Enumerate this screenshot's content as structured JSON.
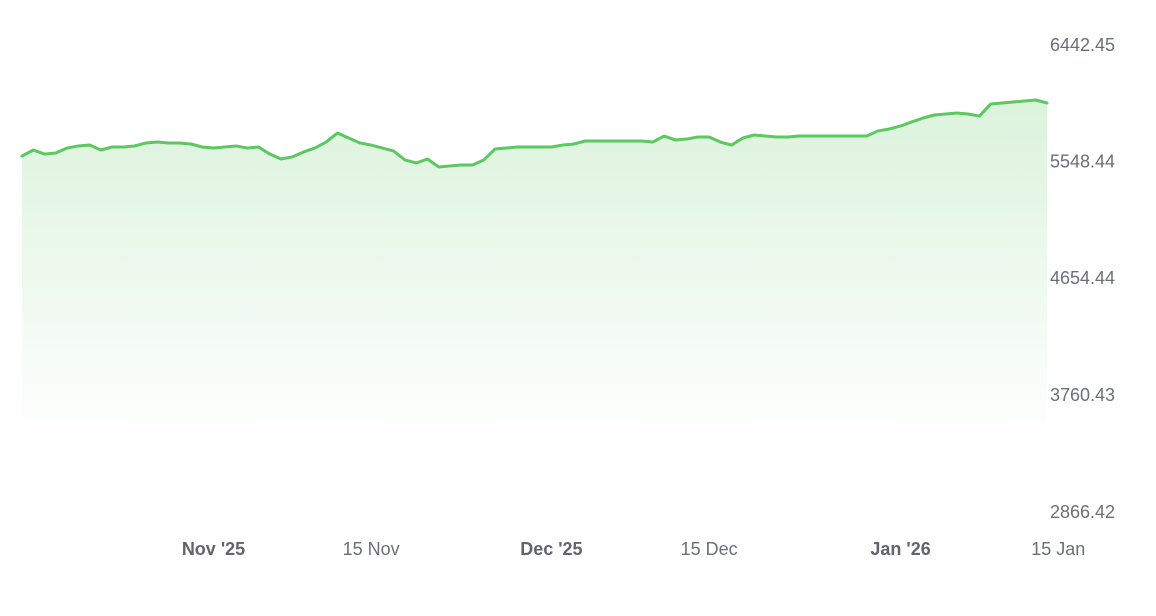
{
  "chart_data": {
    "type": "area",
    "x": [
      "2025-10-15",
      "2025-10-16",
      "2025-10-17",
      "2025-10-18",
      "2025-10-19",
      "2025-10-20",
      "2025-10-21",
      "2025-10-22",
      "2025-10-23",
      "2025-10-24",
      "2025-10-25",
      "2025-10-26",
      "2025-10-27",
      "2025-10-28",
      "2025-10-29",
      "2025-10-30",
      "2025-10-31",
      "2025-11-01",
      "2025-11-02",
      "2025-11-03",
      "2025-11-04",
      "2025-11-05",
      "2025-11-06",
      "2025-11-07",
      "2025-11-08",
      "2025-11-09",
      "2025-11-10",
      "2025-11-11",
      "2025-11-12",
      "2025-11-13",
      "2025-11-14",
      "2025-11-15",
      "2025-11-16",
      "2025-11-17",
      "2025-11-18",
      "2025-11-19",
      "2025-11-20",
      "2025-11-21",
      "2025-11-22",
      "2025-11-23",
      "2025-11-24",
      "2025-11-25",
      "2025-11-26",
      "2025-11-27",
      "2025-11-28",
      "2025-11-29",
      "2025-11-30",
      "2025-12-01",
      "2025-12-02",
      "2025-12-03",
      "2025-12-04",
      "2025-12-05",
      "2025-12-06",
      "2025-12-07",
      "2025-12-08",
      "2025-12-09",
      "2025-12-10",
      "2025-12-11",
      "2025-12-12",
      "2025-12-13",
      "2025-12-14",
      "2025-12-15",
      "2025-12-16",
      "2025-12-17",
      "2025-12-18",
      "2025-12-19",
      "2025-12-20",
      "2025-12-21",
      "2025-12-22",
      "2025-12-23",
      "2025-12-24",
      "2025-12-25",
      "2025-12-26",
      "2025-12-27",
      "2025-12-28",
      "2025-12-29",
      "2025-12-30",
      "2025-12-31",
      "2026-01-01",
      "2026-01-02",
      "2026-01-03",
      "2026-01-04",
      "2026-01-05",
      "2026-01-06",
      "2026-01-07",
      "2026-01-08",
      "2026-01-09",
      "2026-01-10",
      "2026-01-11",
      "2026-01-12",
      "2026-01-13",
      "2026-01-14"
    ],
    "series": [
      {
        "color": "#5cc860",
        "values": [
          5600,
          5646,
          5615,
          5623,
          5661,
          5677,
          5684,
          5646,
          5669,
          5669,
          5677,
          5700,
          5707,
          5700,
          5700,
          5692,
          5669,
          5661,
          5669,
          5677,
          5661,
          5669,
          5615,
          5577,
          5593,
          5631,
          5661,
          5707,
          5776,
          5738,
          5700,
          5684,
          5661,
          5638,
          5570,
          5547,
          5577,
          5516,
          5524,
          5531,
          5531,
          5570,
          5654,
          5661,
          5669,
          5669,
          5669,
          5669,
          5684,
          5692,
          5715,
          5715,
          5715,
          5715,
          5715,
          5715,
          5707,
          5753,
          5723,
          5730,
          5746,
          5746,
          5707,
          5684,
          5738,
          5761,
          5753,
          5746,
          5746,
          5753,
          5753,
          5753,
          5753,
          5753,
          5753,
          5753,
          5792,
          5807,
          5830,
          5861,
          5891,
          5914,
          5922,
          5929,
          5922,
          5906,
          5998,
          6006,
          6014,
          6021,
          6029,
          6006
        ]
      }
    ],
    "xlim": [
      "2025-10-15",
      "2026-01-14"
    ],
    "xticks": [
      {
        "value": "2025-11-01",
        "label": "Nov '25"
      },
      {
        "value": "2025-11-15",
        "label": "15 Nov"
      },
      {
        "value": "2025-12-01",
        "label": "Dec '25"
      },
      {
        "value": "2025-12-15",
        "label": "15 Dec"
      },
      {
        "value": "2026-01-01",
        "label": "Jan '26"
      },
      {
        "value": "2026-01-15",
        "label": "15 Jan"
      }
    ],
    "ylim": [
      2866.42,
      6442.45
    ],
    "yticks": [
      2866.42,
      3760.43,
      4654.44,
      5548.44,
      6442.45
    ],
    "grid": false
  }
}
